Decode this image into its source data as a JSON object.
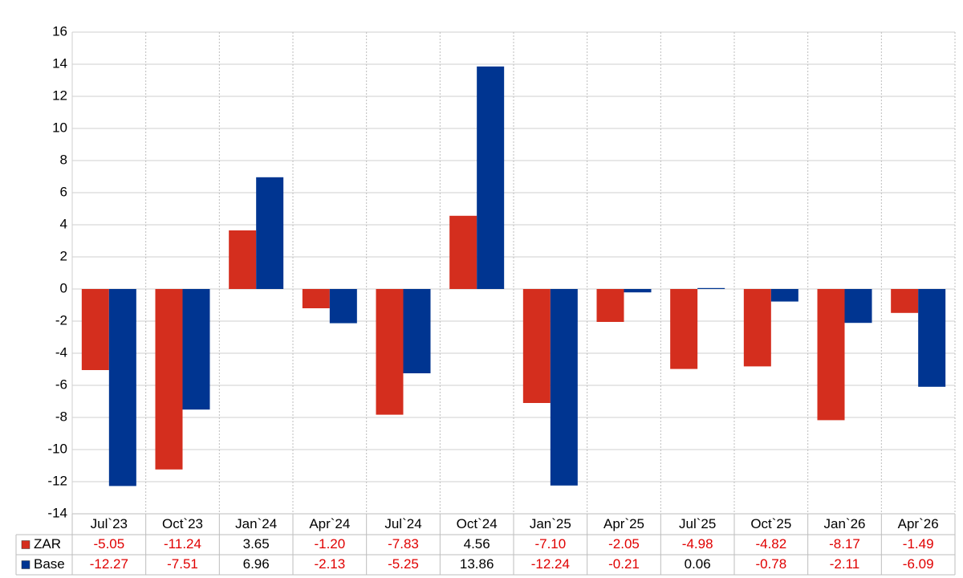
{
  "chart_data": {
    "type": "bar",
    "categories": [
      "Jul`23",
      "Oct`23",
      "Jan`24",
      "Apr`24",
      "Jul`24",
      "Oct`24",
      "Jan`25",
      "Apr`25",
      "Jul`25",
      "Oct`25",
      "Jan`26",
      "Apr`26"
    ],
    "series": [
      {
        "name": "ZAR",
        "color": "#d42e1e",
        "values": [
          -5.05,
          -11.24,
          3.65,
          -1.2,
          -7.83,
          4.56,
          -7.1,
          -2.05,
          -4.98,
          -4.82,
          -8.17,
          -1.49
        ],
        "value_labels": [
          "-5.05",
          "-11.24",
          "3.65",
          "-1.20",
          "-7.83",
          "4.56",
          "-7.10",
          "-2.05",
          "-4.98",
          "-4.82",
          "-8.17",
          "-1.49"
        ]
      },
      {
        "name": "Base",
        "color": "#003591",
        "values": [
          -12.27,
          -7.51,
          6.96,
          -2.13,
          -5.25,
          13.86,
          -12.24,
          -0.21,
          0.06,
          -0.78,
          -2.11,
          -6.09
        ],
        "value_labels": [
          "-12.27",
          "-7.51",
          "6.96",
          "-2.13",
          "-5.25",
          "13.86",
          "-12.24",
          "-0.21",
          "0.06",
          "-0.78",
          "-2.11",
          "-6.09"
        ]
      }
    ],
    "ylim": [
      -14,
      16
    ],
    "yticks": [
      -14,
      -12,
      -10,
      -8,
      -6,
      -4,
      -2,
      0,
      2,
      4,
      6,
      8,
      10,
      12,
      14,
      16
    ],
    "grid": true
  }
}
